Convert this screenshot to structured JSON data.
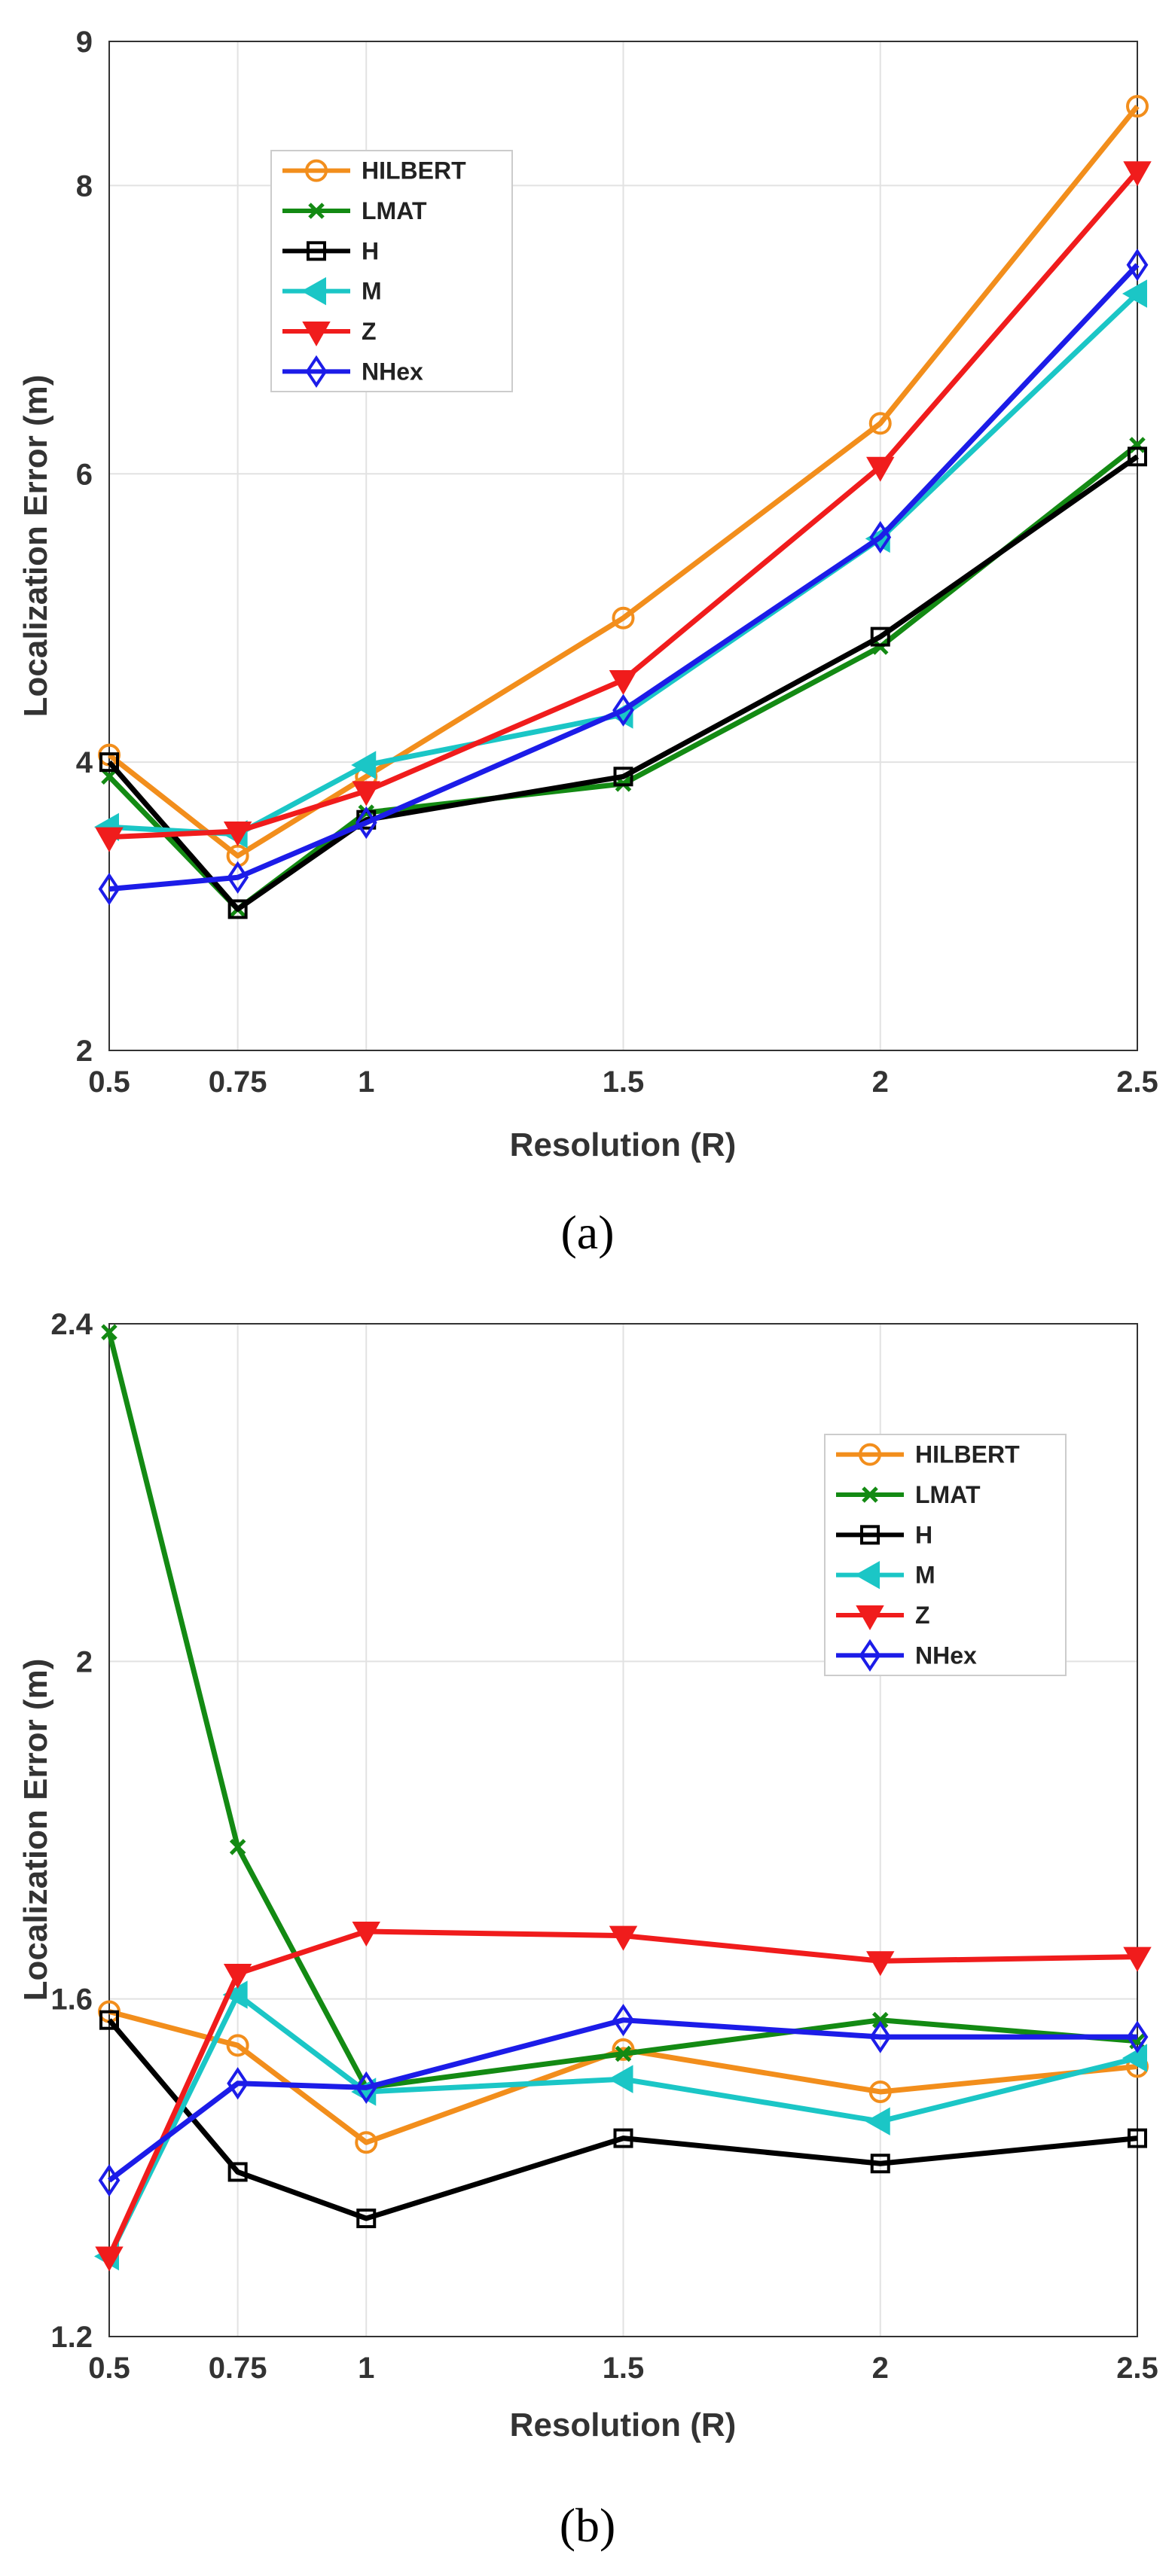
{
  "figure": {
    "captions": [
      "(a)",
      "(b)"
    ]
  },
  "chart_data": [
    {
      "type": "line",
      "panel": "a",
      "xlabel": "Resolution (R)",
      "ylabel": "Localization Error (m)",
      "x": [
        0.5,
        0.75,
        1,
        1.5,
        2,
        2.5
      ],
      "x_tick_labels": [
        "0.5",
        "0.75",
        "1",
        "1.5",
        "2",
        "2.5"
      ],
      "ylim": [
        2,
        9
      ],
      "y_ticks": [
        2,
        4,
        6,
        8,
        9
      ],
      "y_tick_labels": [
        "2",
        "4",
        "6",
        "8",
        "9"
      ],
      "grid": true,
      "legend_position": "top-left",
      "series": [
        {
          "name": "HILBERT",
          "color": "#F28E1C",
          "marker": "circle",
          "values": [
            4.05,
            3.35,
            3.9,
            5.0,
            6.35,
            8.55
          ]
        },
        {
          "name": "LMAT",
          "color": "#138A13",
          "marker": "x",
          "values": [
            3.9,
            2.98,
            3.65,
            3.85,
            4.8,
            6.2
          ]
        },
        {
          "name": "H",
          "color": "#000000",
          "marker": "square",
          "values": [
            4.0,
            2.98,
            3.6,
            3.9,
            4.87,
            6.12
          ]
        },
        {
          "name": "M",
          "color": "#1BC6C6",
          "marker": "triangle-left",
          "values": [
            3.55,
            3.5,
            3.98,
            4.33,
            5.55,
            7.25
          ]
        },
        {
          "name": "Z",
          "color": "#F01C1C",
          "marker": "triangle-down",
          "values": [
            3.48,
            3.52,
            3.8,
            4.57,
            6.05,
            8.1
          ]
        },
        {
          "name": "NHex",
          "color": "#1C1CE8",
          "marker": "diamond",
          "values": [
            3.12,
            3.2,
            3.58,
            4.36,
            5.56,
            7.45
          ]
        }
      ]
    },
    {
      "type": "line",
      "panel": "b",
      "xlabel": "Resolution (R)",
      "ylabel": "Localization Error (m)",
      "x": [
        0.5,
        0.75,
        1,
        1.5,
        2,
        2.5
      ],
      "x_tick_labels": [
        "0.5",
        "0.75",
        "1",
        "1.5",
        "2",
        "2.5"
      ],
      "ylim": [
        1.2,
        2.4
      ],
      "y_ticks": [
        1.2,
        1.6,
        2,
        2.4
      ],
      "y_tick_labels": [
        "1.2",
        "1.6",
        "2",
        "2.4"
      ],
      "grid": true,
      "legend_position": "top-right",
      "series": [
        {
          "name": "HILBERT",
          "color": "#F28E1C",
          "marker": "circle",
          "values": [
            1.585,
            1.545,
            1.43,
            1.54,
            1.49,
            1.52
          ]
        },
        {
          "name": "LMAT",
          "color": "#138A13",
          "marker": "x",
          "values": [
            2.39,
            1.78,
            1.495,
            1.535,
            1.575,
            1.55
          ]
        },
        {
          "name": "H",
          "color": "#000000",
          "marker": "square",
          "values": [
            1.575,
            1.395,
            1.34,
            1.435,
            1.405,
            1.435
          ]
        },
        {
          "name": "M",
          "color": "#1BC6C6",
          "marker": "triangle-left",
          "values": [
            1.295,
            1.605,
            1.49,
            1.505,
            1.455,
            1.53
          ]
        },
        {
          "name": "Z",
          "color": "#F01C1C",
          "marker": "triangle-down",
          "values": [
            1.295,
            1.63,
            1.68,
            1.675,
            1.645,
            1.65
          ]
        },
        {
          "name": "NHex",
          "color": "#1C1CE8",
          "marker": "diamond",
          "values": [
            1.385,
            1.5,
            1.495,
            1.575,
            1.555,
            1.555
          ]
        }
      ]
    }
  ]
}
